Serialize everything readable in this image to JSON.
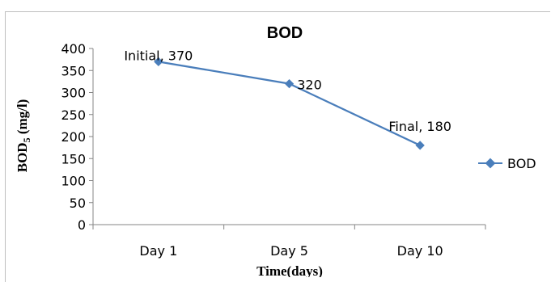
{
  "chart_data": {
    "type": "line",
    "title": "BOD",
    "xlabel": "Time(days)",
    "ylabel": "BOD5 (mg/l)",
    "ylabel_parts": {
      "main": "BOD",
      "sub": "5",
      "unit": " (mg/l)"
    },
    "categories": [
      "Day 1",
      "Day 5",
      "Day 10"
    ],
    "series": [
      {
        "name": "BOD",
        "values": [
          370,
          320,
          180
        ],
        "color": "#4a7ebb"
      }
    ],
    "data_labels": [
      "Initial, 370",
      "320",
      "Final, 180"
    ],
    "yticks": [
      "0",
      "50",
      "100",
      "150",
      "200",
      "250",
      "300",
      "350",
      "400"
    ],
    "ylim": [
      0,
      400
    ],
    "grid": false,
    "legend": "right"
  }
}
